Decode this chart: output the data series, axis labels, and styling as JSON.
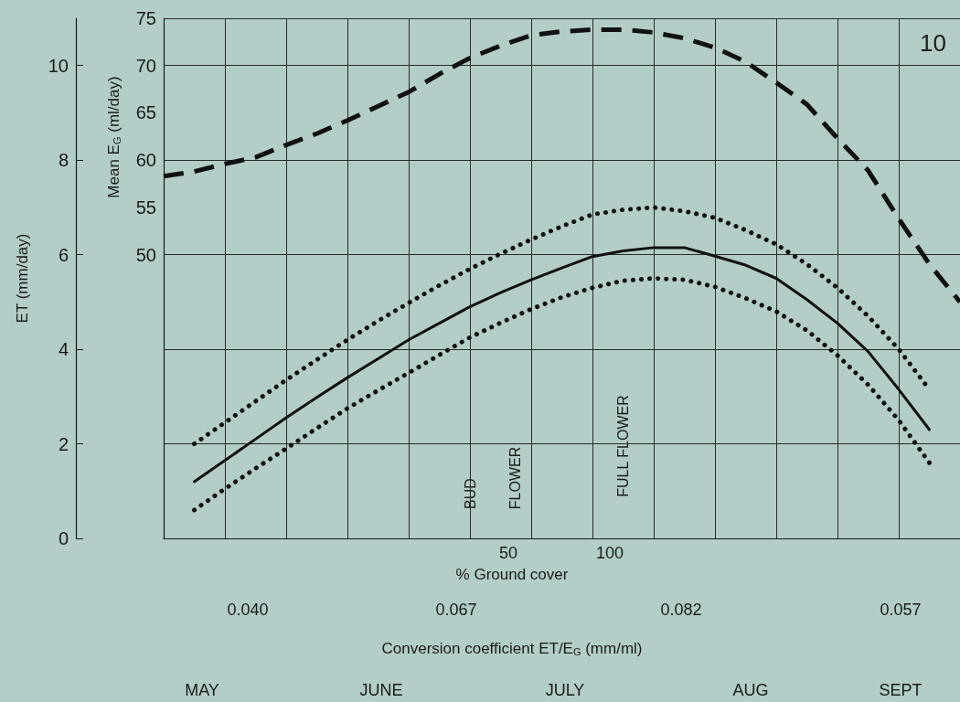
{
  "chart_data": {
    "type": "line",
    "ylabel": "ET (mm/day)",
    "y2label": "Mean E$_{G}$ (ml/day)",
    "categories": [
      null,
      null,
      null,
      null,
      null,
      null,
      null,
      null,
      null,
      null,
      null,
      null,
      null,
      null,
      null,
      null,
      null,
      null,
      null,
      null,
      null,
      null,
      null,
      null,
      null,
      null,
      null
    ],
    "series": [
      {
        "axis": "y2",
        "line_style": "dashed",
        "color": "#111111",
        "values": [
          58.3,
          58.8,
          59.6,
          60.3,
          61.6,
          62.8,
          64.2,
          65.7,
          67.2,
          69.1,
          70.8,
          72.1,
          73.2,
          73.6,
          73.8,
          73.8,
          73.5,
          72.9,
          71.9,
          70.4,
          68.2,
          65.9,
          62.3,
          58.9,
          53.8,
          49.0,
          45.0
        ]
      },
      {
        "line_style": "solid",
        "color": "#111111",
        "values": [
          null,
          1.2,
          1.65,
          2.1,
          2.55,
          2.98,
          3.4,
          3.8,
          4.2,
          4.55,
          4.9,
          5.2,
          5.47,
          5.72,
          5.96,
          6.08,
          6.15,
          6.15,
          5.97,
          5.78,
          5.5,
          5.05,
          4.55,
          3.95,
          3.15,
          2.3,
          null
        ]
      },
      {
        "line_style": "dotted",
        "color": "#111111",
        "values": [
          null,
          2.0,
          2.45,
          2.9,
          3.35,
          3.78,
          4.2,
          4.6,
          4.98,
          5.35,
          5.7,
          6.02,
          6.32,
          6.6,
          6.85,
          6.95,
          7.0,
          6.92,
          6.78,
          6.52,
          6.22,
          5.8,
          5.3,
          4.7,
          4.0,
          3.15,
          null
        ]
      },
      {
        "line_style": "dotted",
        "color": "#111111",
        "values": [
          null,
          0.6,
          1.05,
          1.48,
          1.9,
          2.33,
          2.75,
          3.13,
          3.5,
          3.88,
          4.25,
          4.56,
          4.85,
          5.1,
          5.3,
          5.45,
          5.5,
          5.47,
          5.32,
          5.08,
          4.8,
          4.4,
          3.87,
          3.25,
          2.5,
          1.6,
          null
        ]
      }
    ],
    "ylim": [
      0,
      11
    ],
    "yticks": [
      0,
      2,
      4,
      6,
      8,
      10
    ],
    "y2lim": [
      20,
      75
    ],
    "y2ticks": [
      50,
      55,
      60,
      65,
      70,
      75
    ],
    "grid": true,
    "tick_labels": "y",
    "marker": "none",
    "annotations": [
      "10",
      "BUD",
      "FLOWER",
      "FULL FLOWER",
      "50",
      "100",
      "% Ground cover",
      "0.040",
      "0.067",
      "0.082",
      "0.057",
      "Conversion coefficient ET/E$_{G}$ (mm/ml)",
      "MAY",
      "JUNE",
      "JULY",
      "AUG",
      "SEPT"
    ]
  }
}
